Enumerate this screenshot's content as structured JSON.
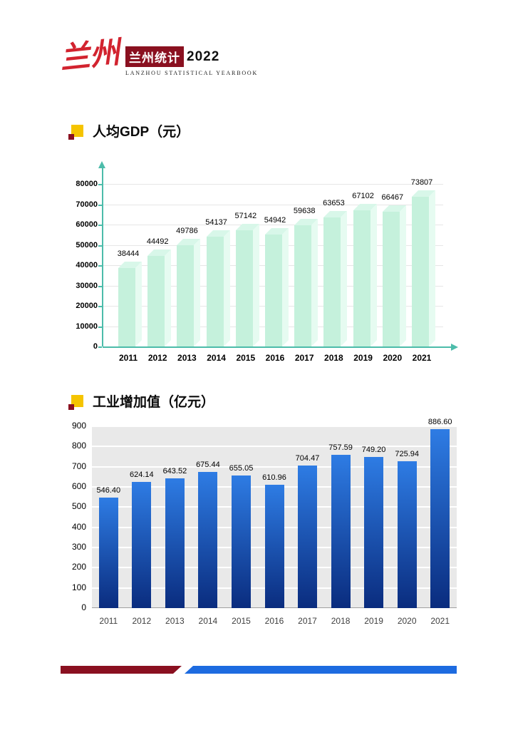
{
  "header": {
    "logo_script": "兰州",
    "brand_cn": "兰州统计",
    "year": "2022",
    "subtitle_en": "LANZHOU STATISTICAL YEARBOOK"
  },
  "colors": {
    "maroon": "#8a1020",
    "red": "#d2232f",
    "yellow": "#f5c400",
    "blue": "#1d6be0"
  },
  "chart_data": [
    {
      "type": "bar",
      "title": "人均GDP（元）",
      "categories": [
        "2011",
        "2012",
        "2013",
        "2014",
        "2015",
        "2016",
        "2017",
        "2018",
        "2019",
        "2020",
        "2021"
      ],
      "values": [
        38444,
        44492,
        49786,
        54137,
        57142,
        54942,
        59638,
        63653,
        67102,
        66467,
        73807
      ],
      "value_labels": [
        "38444",
        "44492",
        "49786",
        "54137",
        "57142",
        "54942",
        "59638",
        "63653",
        "67102",
        "66467",
        "73807"
      ],
      "xlabel": "",
      "ylabel": "",
      "ylim": [
        0,
        80000
      ],
      "yticks": [
        0,
        10000,
        20000,
        30000,
        40000,
        50000,
        60000,
        70000,
        80000
      ],
      "legend": "none",
      "grid": true,
      "style": {
        "effect": "3d",
        "axis_color": "#4cbcaa",
        "bar_front": "#c5f1dc",
        "bar_side": "#e6fbf1",
        "bar_top": "#d8f7e9"
      }
    },
    {
      "type": "bar",
      "title": "工业增加值（亿元）",
      "categories": [
        "2011",
        "2012",
        "2013",
        "2014",
        "2015",
        "2016",
        "2017",
        "2018",
        "2019",
        "2020",
        "2021"
      ],
      "values": [
        546.4,
        624.14,
        643.52,
        675.44,
        655.05,
        610.96,
        704.47,
        757.59,
        749.2,
        725.94,
        886.6
      ],
      "value_labels": [
        "546.40",
        "624.14",
        "643.52",
        "675.44",
        "655.05",
        "610.96",
        "704.47",
        "757.59",
        "749.20",
        "725.94",
        "886.60"
      ],
      "xlabel": "",
      "ylabel": "",
      "ylim": [
        0,
        900
      ],
      "yticks": [
        0,
        100,
        200,
        300,
        400,
        500,
        600,
        700,
        800,
        900
      ],
      "legend": "none",
      "grid": true,
      "style": {
        "plot_bg": "#e9e9e9",
        "grid_color": "#ffffff",
        "bar_gradient_top": "#2e7ce4",
        "bar_gradient_bottom": "#0a2c7e"
      }
    }
  ]
}
